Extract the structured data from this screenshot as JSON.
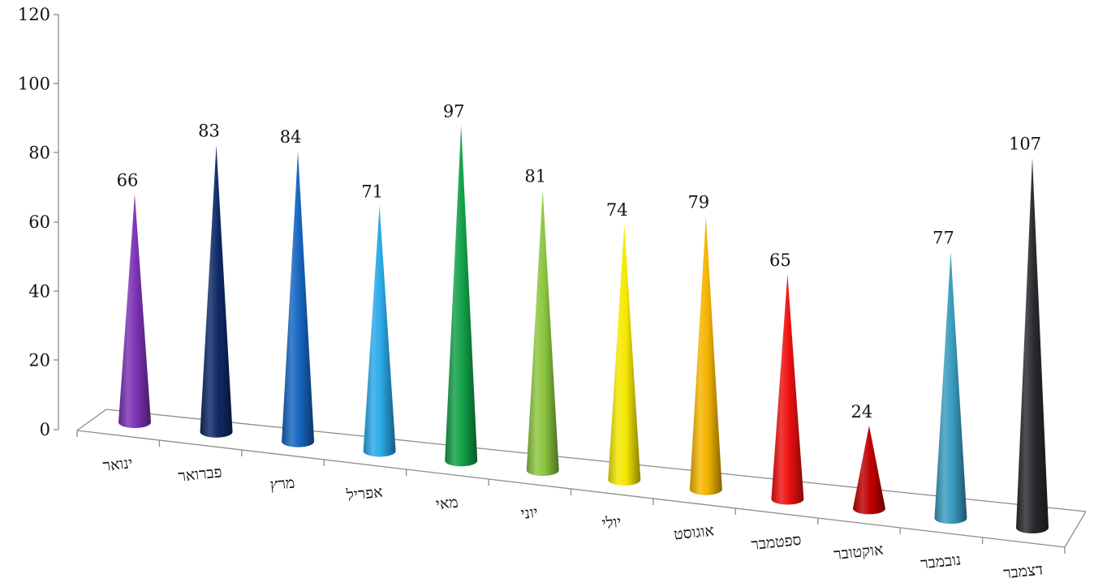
{
  "chart_data": {
    "type": "bar",
    "bar_shape": "cone-3d",
    "title": "",
    "xlabel": "",
    "ylabel": "",
    "ylim": [
      0,
      120
    ],
    "yticks": [
      0,
      20,
      40,
      60,
      80,
      100,
      120
    ],
    "grid": false,
    "legend": "none",
    "categories": [
      "ינואר",
      "פברואר",
      "מרץ",
      "אפריל",
      "מאי",
      "יוני",
      "יולי",
      "אוגוסט",
      "ספטמבר",
      "אוקטובר",
      "נובמבר",
      "דצמבר"
    ],
    "values": [
      66,
      83,
      84,
      71,
      97,
      81,
      74,
      79,
      65,
      24,
      77,
      107
    ],
    "colors": [
      "#7b32b4",
      "#0f2a66",
      "#1565c0",
      "#29a8e6",
      "#12a048",
      "#8cc63f",
      "#f5e800",
      "#f5b400",
      "#ee1111",
      "#c00000",
      "#3a9bbf",
      "#2a2a2e"
    ]
  }
}
